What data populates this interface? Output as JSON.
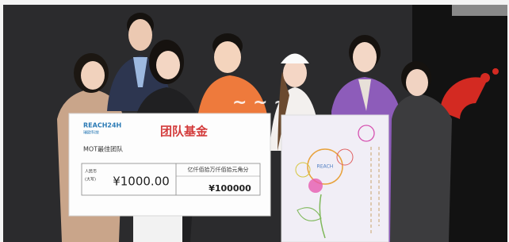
{
  "check": {
    "logo": "REACH24H",
    "logo_sub": "瑞欧科技",
    "title": "团队基金",
    "recipient": "MOT最佳团队",
    "currency_label": "人民币",
    "currency_sub": "(大写)",
    "amount": "¥1000.00",
    "digit_header": "亿仟佰拾万仟佰拾元角分",
    "amount_digits": "¥100000"
  },
  "sign": {
    "bubble_text": "REACH"
  }
}
